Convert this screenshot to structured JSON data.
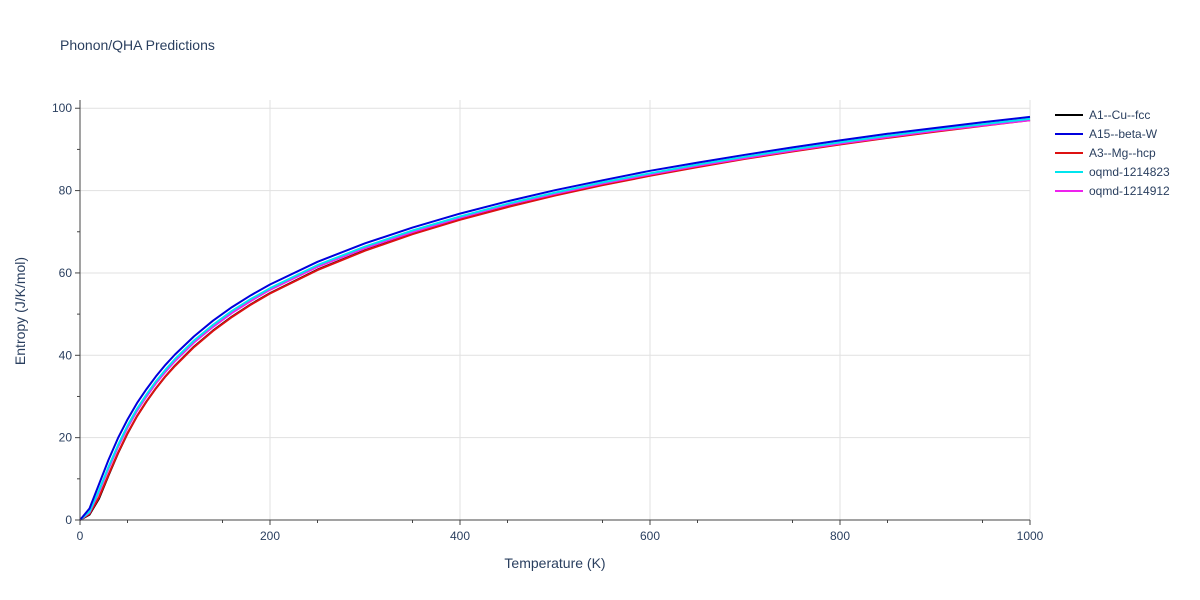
{
  "chart_data": {
    "type": "line",
    "title": "Phonon/QHA Predictions",
    "xlabel": "Temperature (K)",
    "ylabel": "Entropy (J/K/mol)",
    "xlim": [
      0,
      1000
    ],
    "ylim": [
      0,
      102
    ],
    "xticks": [
      0,
      200,
      400,
      600,
      800,
      1000
    ],
    "yticks": [
      0,
      20,
      40,
      60,
      80,
      100
    ],
    "grid": true,
    "legend": "right",
    "x": [
      0,
      10,
      20,
      30,
      40,
      50,
      60,
      70,
      80,
      90,
      100,
      120,
      140,
      160,
      180,
      200,
      250,
      300,
      350,
      400,
      450,
      500,
      550,
      600,
      650,
      700,
      750,
      800,
      850,
      900,
      950,
      1000
    ],
    "series": [
      {
        "name": "A1--Cu--fcc",
        "color": "#000000",
        "values": [
          0,
          1.3,
          5.2,
          10.8,
          16.2,
          21.0,
          25.2,
          28.8,
          32.0,
          34.9,
          37.5,
          42.1,
          46.0,
          49.4,
          52.4,
          55.1,
          60.8,
          65.5,
          69.5,
          73.0,
          76.1,
          78.9,
          81.4,
          83.7,
          85.8,
          87.8,
          89.6,
          91.3,
          92.9,
          94.4,
          95.8,
          97.2
        ]
      },
      {
        "name": "A15--beta-W",
        "color": "#0000dd",
        "values": [
          0,
          2.8,
          8.7,
          14.6,
          19.9,
          24.4,
          28.4,
          31.8,
          34.9,
          37.7,
          40.2,
          44.6,
          48.4,
          51.7,
          54.6,
          57.2,
          62.7,
          67.2,
          71.0,
          74.4,
          77.4,
          80.1,
          82.5,
          84.8,
          86.8,
          88.7,
          90.5,
          92.2,
          93.8,
          95.2,
          96.6,
          97.9
        ]
      },
      {
        "name": "A3--Mg--hcp",
        "color": "#dd1111",
        "values": [
          0,
          1.5,
          5.5,
          11.0,
          16.3,
          21.1,
          25.2,
          28.8,
          32.0,
          34.9,
          37.4,
          42.0,
          45.9,
          49.3,
          52.3,
          55.0,
          60.7,
          65.4,
          69.4,
          72.9,
          76.0,
          78.8,
          81.3,
          83.6,
          85.7,
          87.7,
          89.5,
          91.2,
          92.8,
          94.3,
          95.7,
          97.1
        ]
      },
      {
        "name": "oqmd-1214823",
        "color": "#00e5ee",
        "values": [
          0,
          2.0,
          7.2,
          12.9,
          18.2,
          22.9,
          27.0,
          30.5,
          33.7,
          36.5,
          39.1,
          43.6,
          47.4,
          50.8,
          53.7,
          56.3,
          61.9,
          66.4,
          70.3,
          73.7,
          76.8,
          79.5,
          82.0,
          84.2,
          86.3,
          88.2,
          90.0,
          91.7,
          93.3,
          94.8,
          96.1,
          97.4
        ]
      },
      {
        "name": "oqmd-1214912",
        "color": "#ee22ee",
        "values": [
          0,
          1.8,
          6.8,
          12.4,
          17.7,
          22.4,
          26.5,
          30.0,
          33.2,
          36.0,
          38.6,
          43.1,
          46.9,
          50.3,
          53.2,
          55.9,
          61.5,
          66.0,
          69.9,
          73.4,
          76.5,
          79.2,
          81.7,
          83.9,
          86.0,
          87.9,
          89.7,
          91.4,
          93.0,
          94.5,
          95.8,
          97.1
        ]
      }
    ]
  }
}
